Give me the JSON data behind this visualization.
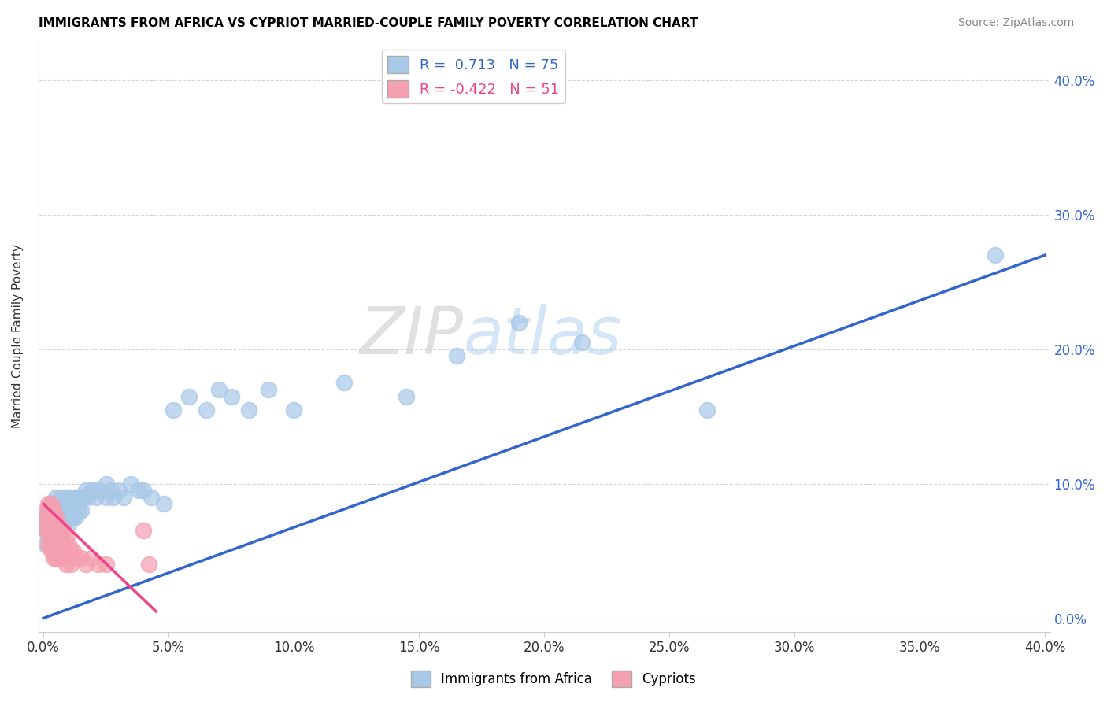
{
  "title": "IMMIGRANTS FROM AFRICA VS CYPRIOT MARRIED-COUPLE FAMILY POVERTY CORRELATION CHART",
  "source": "Source: ZipAtlas.com",
  "ylabel": "Married-Couple Family Poverty",
  "legend_labels": [
    "Immigrants from Africa",
    "Cypriots"
  ],
  "r_africa": 0.713,
  "n_africa": 75,
  "r_cypriot": -0.422,
  "n_cypriot": 51,
  "xlim": [
    -0.002,
    0.402
  ],
  "ylim": [
    -0.01,
    0.43
  ],
  "xticks": [
    0.0,
    0.05,
    0.1,
    0.15,
    0.2,
    0.25,
    0.3,
    0.35,
    0.4
  ],
  "yticks": [
    0.0,
    0.1,
    0.2,
    0.3,
    0.4
  ],
  "africa_color": "#a8c8e8",
  "cypriot_color": "#f4a0b0",
  "africa_line_color": "#3366cc",
  "cypriot_line_color": "#ee4488",
  "watermark_zip": "ZIP",
  "watermark_atlas": "atlas",
  "africa_scatter_x": [
    0.001,
    0.001,
    0.001,
    0.002,
    0.002,
    0.002,
    0.002,
    0.003,
    0.003,
    0.003,
    0.003,
    0.004,
    0.004,
    0.004,
    0.005,
    0.005,
    0.005,
    0.005,
    0.006,
    0.006,
    0.006,
    0.007,
    0.007,
    0.007,
    0.008,
    0.008,
    0.008,
    0.009,
    0.009,
    0.01,
    0.01,
    0.01,
    0.011,
    0.011,
    0.012,
    0.012,
    0.013,
    0.013,
    0.014,
    0.014,
    0.015,
    0.015,
    0.016,
    0.017,
    0.018,
    0.019,
    0.02,
    0.021,
    0.022,
    0.025,
    0.025,
    0.027,
    0.028,
    0.03,
    0.032,
    0.035,
    0.038,
    0.04,
    0.043,
    0.048,
    0.052,
    0.058,
    0.065,
    0.07,
    0.075,
    0.082,
    0.09,
    0.1,
    0.12,
    0.145,
    0.165,
    0.19,
    0.215,
    0.265,
    0.38
  ],
  "africa_scatter_y": [
    0.055,
    0.065,
    0.075,
    0.06,
    0.07,
    0.075,
    0.08,
    0.06,
    0.07,
    0.075,
    0.085,
    0.065,
    0.075,
    0.085,
    0.06,
    0.07,
    0.075,
    0.09,
    0.065,
    0.075,
    0.085,
    0.065,
    0.08,
    0.09,
    0.07,
    0.08,
    0.09,
    0.08,
    0.09,
    0.07,
    0.08,
    0.09,
    0.075,
    0.085,
    0.075,
    0.085,
    0.075,
    0.09,
    0.08,
    0.09,
    0.08,
    0.09,
    0.09,
    0.095,
    0.09,
    0.095,
    0.095,
    0.09,
    0.095,
    0.09,
    0.1,
    0.095,
    0.09,
    0.095,
    0.09,
    0.1,
    0.095,
    0.095,
    0.09,
    0.085,
    0.155,
    0.165,
    0.155,
    0.17,
    0.165,
    0.155,
    0.17,
    0.155,
    0.175,
    0.165,
    0.195,
    0.22,
    0.205,
    0.155,
    0.27
  ],
  "cypriot_scatter_x": [
    0.001,
    0.001,
    0.001,
    0.001,
    0.002,
    0.002,
    0.002,
    0.002,
    0.002,
    0.003,
    0.003,
    0.003,
    0.003,
    0.003,
    0.003,
    0.004,
    0.004,
    0.004,
    0.004,
    0.004,
    0.005,
    0.005,
    0.005,
    0.005,
    0.005,
    0.006,
    0.006,
    0.006,
    0.006,
    0.007,
    0.007,
    0.007,
    0.008,
    0.008,
    0.008,
    0.009,
    0.009,
    0.009,
    0.01,
    0.01,
    0.011,
    0.011,
    0.012,
    0.013,
    0.015,
    0.017,
    0.019,
    0.022,
    0.025,
    0.04,
    0.042
  ],
  "cypriot_scatter_y": [
    0.08,
    0.075,
    0.07,
    0.065,
    0.085,
    0.08,
    0.075,
    0.065,
    0.055,
    0.085,
    0.08,
    0.075,
    0.065,
    0.055,
    0.05,
    0.08,
    0.075,
    0.065,
    0.055,
    0.045,
    0.075,
    0.07,
    0.065,
    0.055,
    0.045,
    0.07,
    0.065,
    0.055,
    0.045,
    0.065,
    0.055,
    0.045,
    0.065,
    0.055,
    0.045,
    0.06,
    0.05,
    0.04,
    0.055,
    0.045,
    0.05,
    0.04,
    0.05,
    0.045,
    0.045,
    0.04,
    0.045,
    0.04,
    0.04,
    0.065,
    0.04
  ],
  "africa_line_x": [
    0.0,
    0.4
  ],
  "africa_line_y": [
    0.0,
    0.27
  ],
  "cypriot_line_x": [
    0.0,
    0.045
  ],
  "cypriot_line_y": [
    0.085,
    0.005
  ]
}
